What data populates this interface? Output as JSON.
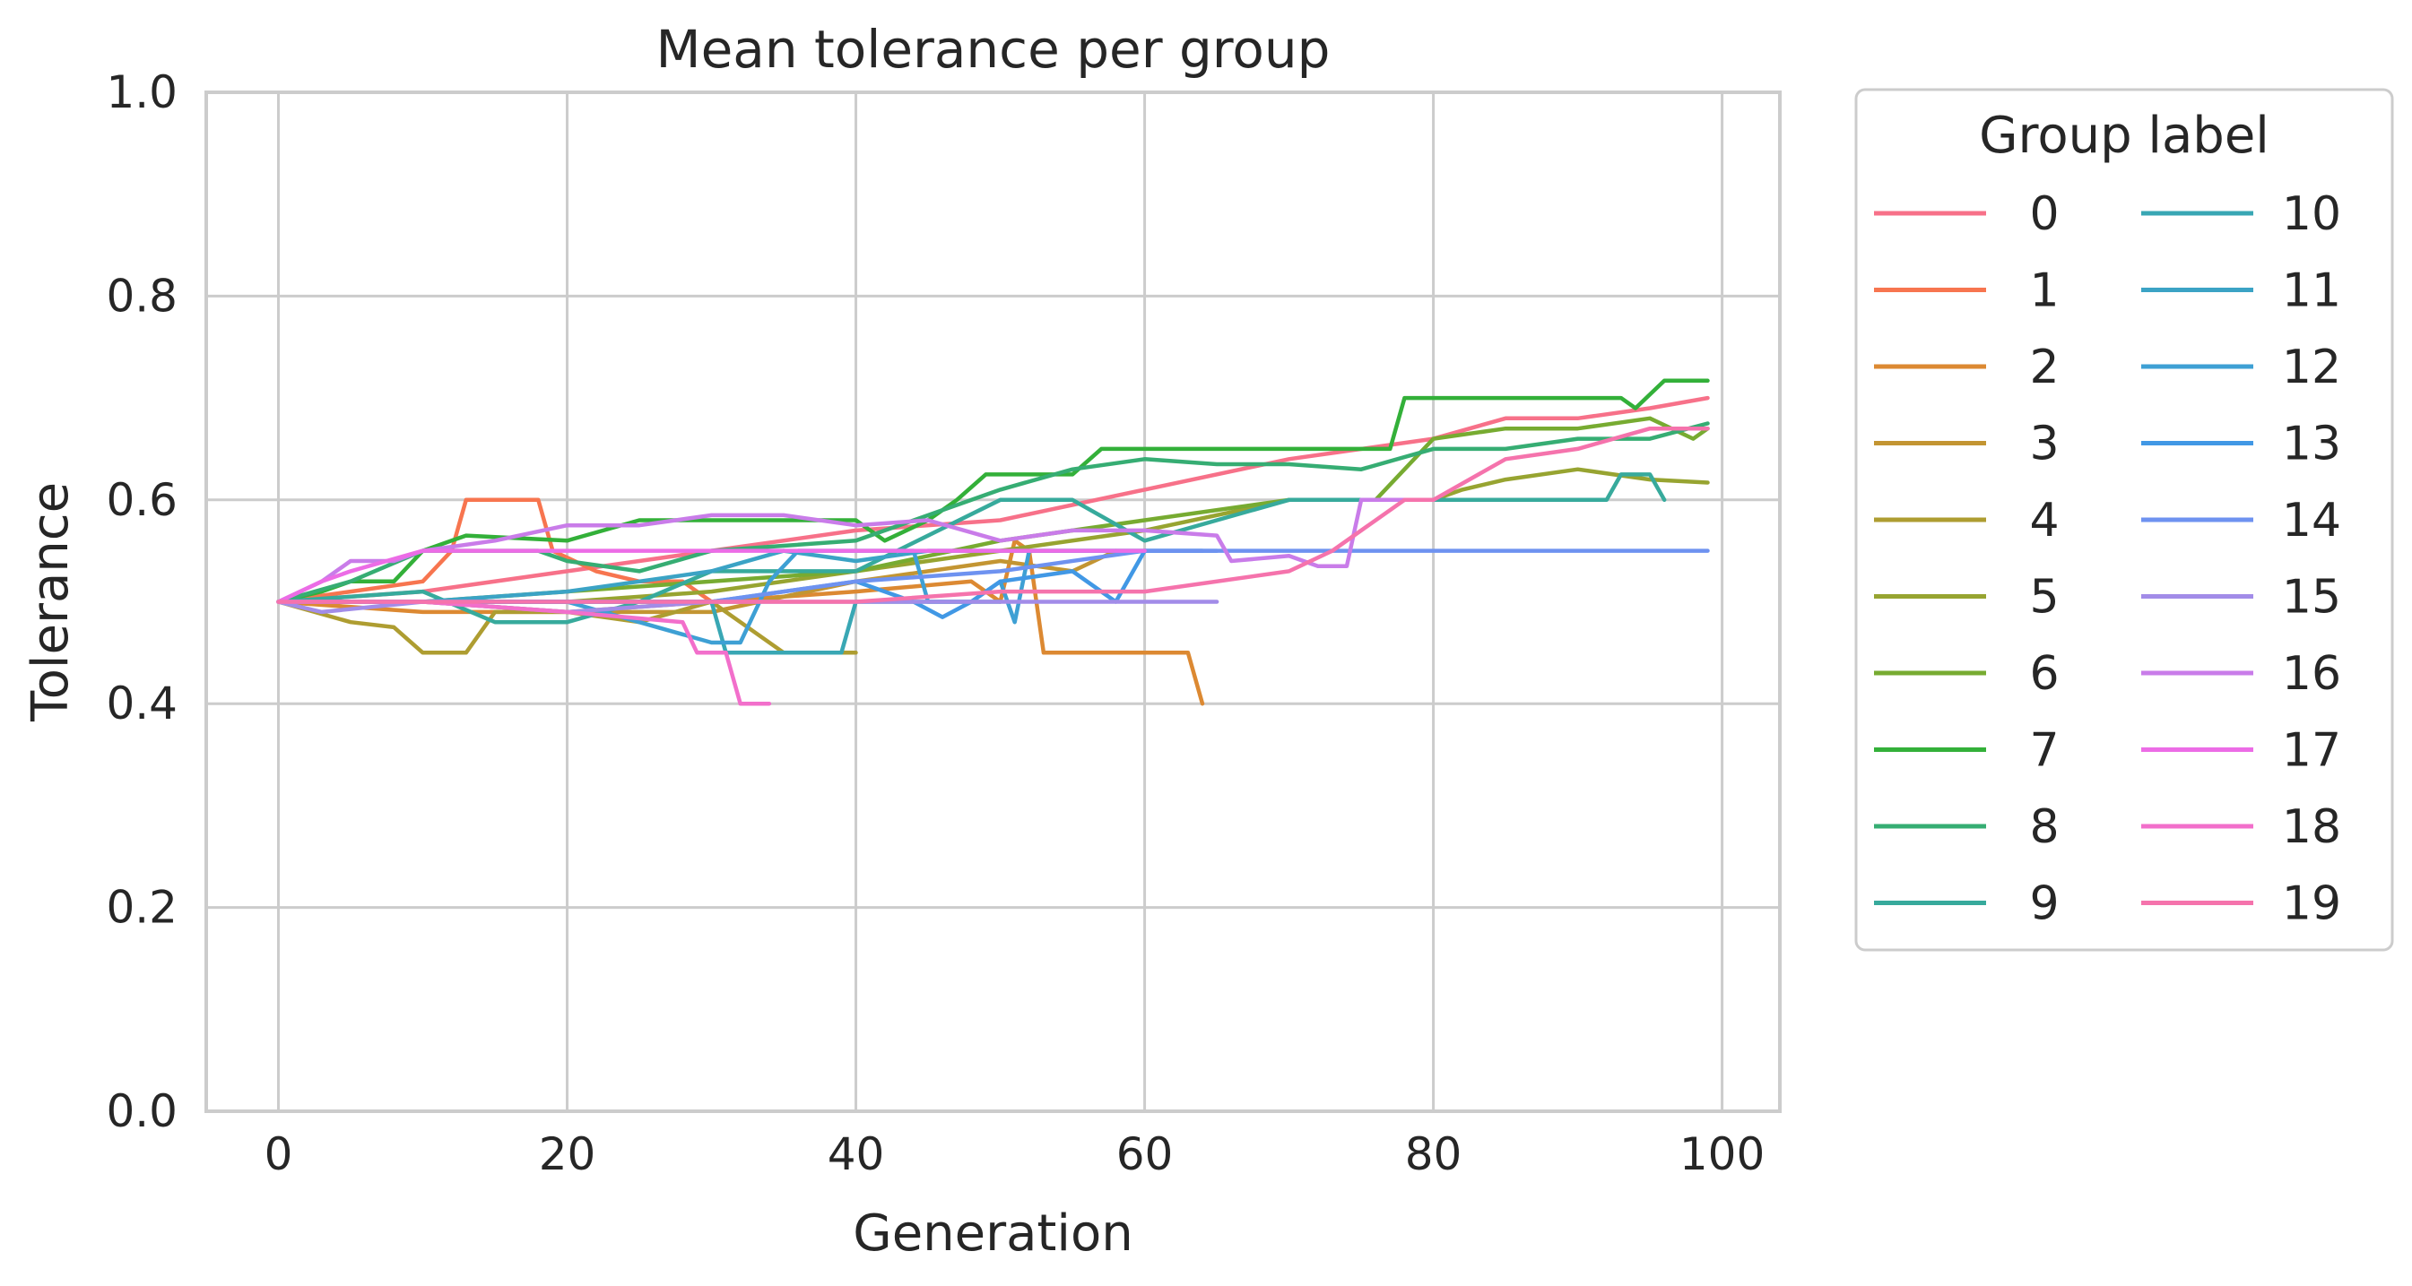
{
  "chart_data": {
    "type": "line",
    "title": "Mean tolerance per group",
    "xlabel": "Generation",
    "ylabel": "Tolerance",
    "xlim": [
      -5,
      104
    ],
    "ylim": [
      0,
      1
    ],
    "xticks": [
      0,
      20,
      40,
      60,
      80,
      100
    ],
    "yticks": [
      0.0,
      0.2,
      0.4,
      0.6,
      0.8,
      1.0
    ],
    "xtick_labels": [
      "0",
      "20",
      "40",
      "60",
      "80",
      "100"
    ],
    "ytick_labels": [
      "0.0",
      "0.2",
      "0.4",
      "0.6",
      "0.8",
      "1.0"
    ],
    "grid": true,
    "legend": {
      "title": "Group label",
      "placement": "outside-upper-right",
      "columns": 2
    },
    "series": [
      {
        "name": "0",
        "color": "#f77189",
        "points": [
          [
            0,
            0.5
          ],
          [
            10,
            0.51
          ],
          [
            20,
            0.53
          ],
          [
            30,
            0.55
          ],
          [
            40,
            0.57
          ],
          [
            50,
            0.58
          ],
          [
            60,
            0.61
          ],
          [
            70,
            0.64
          ],
          [
            80,
            0.66
          ],
          [
            85,
            0.68
          ],
          [
            90,
            0.68
          ],
          [
            95,
            0.69
          ],
          [
            99,
            0.7
          ]
        ]
      },
      {
        "name": "1",
        "color": "#f7754f",
        "points": [
          [
            0,
            0.5
          ],
          [
            5,
            0.51
          ],
          [
            10,
            0.52
          ],
          [
            12,
            0.55
          ],
          [
            13,
            0.6
          ],
          [
            18,
            0.6
          ],
          [
            19,
            0.55
          ],
          [
            22,
            0.53
          ],
          [
            25,
            0.52
          ],
          [
            28,
            0.52
          ],
          [
            30,
            0.5
          ],
          [
            33,
            0.5
          ]
        ]
      },
      {
        "name": "2",
        "color": "#dc8932",
        "points": [
          [
            0,
            0.5
          ],
          [
            10,
            0.49
          ],
          [
            20,
            0.49
          ],
          [
            30,
            0.5
          ],
          [
            40,
            0.51
          ],
          [
            48,
            0.52
          ],
          [
            50,
            0.5
          ],
          [
            51,
            0.56
          ],
          [
            52,
            0.55
          ],
          [
            53,
            0.45
          ],
          [
            63,
            0.45
          ],
          [
            64,
            0.4
          ]
        ]
      },
      {
        "name": "3",
        "color": "#c39532",
        "points": [
          [
            0,
            0.5
          ],
          [
            10,
            0.5
          ],
          [
            20,
            0.49
          ],
          [
            30,
            0.49
          ],
          [
            40,
            0.52
          ],
          [
            50,
            0.54
          ],
          [
            55,
            0.53
          ],
          [
            58,
            0.55
          ]
        ]
      },
      {
        "name": "4",
        "color": "#ae9d31",
        "points": [
          [
            0,
            0.5
          ],
          [
            5,
            0.48
          ],
          [
            8,
            0.475
          ],
          [
            10,
            0.45
          ],
          [
            13,
            0.45
          ],
          [
            15,
            0.49
          ],
          [
            20,
            0.49
          ],
          [
            25,
            0.48
          ],
          [
            30,
            0.5
          ],
          [
            32,
            0.48
          ],
          [
            35,
            0.45
          ],
          [
            40,
            0.45
          ]
        ]
      },
      {
        "name": "5",
        "color": "#97a431",
        "points": [
          [
            0,
            0.5
          ],
          [
            10,
            0.5
          ],
          [
            20,
            0.5
          ],
          [
            30,
            0.51
          ],
          [
            40,
            0.53
          ],
          [
            50,
            0.55
          ],
          [
            60,
            0.57
          ],
          [
            70,
            0.6
          ],
          [
            80,
            0.6
          ],
          [
            82,
            0.61
          ],
          [
            85,
            0.62
          ],
          [
            90,
            0.63
          ],
          [
            95,
            0.62
          ],
          [
            99,
            0.617
          ]
        ]
      },
      {
        "name": "6",
        "color": "#77ab31",
        "points": [
          [
            0,
            0.5
          ],
          [
            10,
            0.5
          ],
          [
            20,
            0.51
          ],
          [
            30,
            0.52
          ],
          [
            40,
            0.53
          ],
          [
            50,
            0.56
          ],
          [
            60,
            0.58
          ],
          [
            70,
            0.6
          ],
          [
            76,
            0.6
          ],
          [
            78,
            0.63
          ],
          [
            80,
            0.66
          ],
          [
            85,
            0.67
          ],
          [
            90,
            0.67
          ],
          [
            95,
            0.68
          ],
          [
            98,
            0.66
          ],
          [
            99,
            0.67
          ]
        ]
      },
      {
        "name": "7",
        "color": "#33b039",
        "points": [
          [
            0,
            0.5
          ],
          [
            3,
            0.51
          ],
          [
            5,
            0.52
          ],
          [
            8,
            0.52
          ],
          [
            10,
            0.55
          ],
          [
            13,
            0.565
          ],
          [
            20,
            0.56
          ],
          [
            25,
            0.58
          ],
          [
            40,
            0.58
          ],
          [
            42,
            0.56
          ],
          [
            45,
            0.58
          ],
          [
            47,
            0.6
          ],
          [
            49,
            0.625
          ],
          [
            55,
            0.625
          ],
          [
            57,
            0.65
          ],
          [
            77,
            0.65
          ],
          [
            78,
            0.7
          ],
          [
            93,
            0.7
          ],
          [
            94,
            0.69
          ],
          [
            96,
            0.717
          ],
          [
            99,
            0.717
          ]
        ]
      },
      {
        "name": "8",
        "color": "#36ad73",
        "points": [
          [
            0,
            0.5
          ],
          [
            5,
            0.52
          ],
          [
            10,
            0.55
          ],
          [
            18,
            0.55
          ],
          [
            20,
            0.54
          ],
          [
            25,
            0.53
          ],
          [
            30,
            0.55
          ],
          [
            40,
            0.56
          ],
          [
            50,
            0.61
          ],
          [
            55,
            0.63
          ],
          [
            60,
            0.64
          ],
          [
            65,
            0.635
          ],
          [
            70,
            0.635
          ],
          [
            75,
            0.63
          ],
          [
            80,
            0.65
          ],
          [
            85,
            0.65
          ],
          [
            90,
            0.66
          ],
          [
            95,
            0.66
          ],
          [
            99,
            0.675
          ]
        ]
      },
      {
        "name": "9",
        "color": "#37aa9c",
        "points": [
          [
            0,
            0.5
          ],
          [
            10,
            0.51
          ],
          [
            15,
            0.48
          ],
          [
            20,
            0.48
          ],
          [
            25,
            0.5
          ],
          [
            30,
            0.53
          ],
          [
            40,
            0.53
          ],
          [
            50,
            0.6
          ],
          [
            55,
            0.6
          ],
          [
            60,
            0.56
          ],
          [
            65,
            0.58
          ],
          [
            70,
            0.6
          ],
          [
            80,
            0.6
          ],
          [
            92,
            0.6
          ],
          [
            93,
            0.625
          ],
          [
            95,
            0.625
          ],
          [
            96,
            0.6
          ]
        ]
      },
      {
        "name": "10",
        "color": "#39a7b4",
        "points": [
          [
            0,
            0.5
          ],
          [
            10,
            0.5
          ],
          [
            20,
            0.5
          ],
          [
            30,
            0.5
          ],
          [
            31,
            0.45
          ],
          [
            39,
            0.45
          ],
          [
            40,
            0.5
          ],
          [
            50,
            0.5
          ]
        ]
      },
      {
        "name": "11",
        "color": "#3ba3c5",
        "points": [
          [
            0,
            0.5
          ],
          [
            10,
            0.5
          ],
          [
            20,
            0.51
          ],
          [
            25,
            0.52
          ],
          [
            30,
            0.53
          ],
          [
            35,
            0.55
          ],
          [
            40,
            0.54
          ],
          [
            45,
            0.55
          ],
          [
            50,
            0.55
          ],
          [
            55,
            0.55
          ],
          [
            60,
            0.55
          ]
        ]
      },
      {
        "name": "12",
        "color": "#3ea0d4",
        "points": [
          [
            0,
            0.5
          ],
          [
            10,
            0.5
          ],
          [
            20,
            0.5
          ],
          [
            30,
            0.46
          ],
          [
            32,
            0.46
          ],
          [
            34,
            0.52
          ],
          [
            36,
            0.55
          ],
          [
            40,
            0.55
          ],
          [
            44,
            0.55
          ],
          [
            45,
            0.5
          ],
          [
            48,
            0.5
          ],
          [
            50,
            0.52
          ],
          [
            51,
            0.48
          ],
          [
            52,
            0.55
          ],
          [
            63,
            0.55
          ],
          [
            64,
            0.55
          ]
        ]
      },
      {
        "name": "13",
        "color": "#4198e5",
        "points": [
          [
            0,
            0.5
          ],
          [
            10,
            0.5
          ],
          [
            20,
            0.5
          ],
          [
            30,
            0.5
          ],
          [
            40,
            0.52
          ],
          [
            44,
            0.5
          ],
          [
            46,
            0.485
          ],
          [
            48,
            0.5
          ],
          [
            50,
            0.52
          ],
          [
            55,
            0.53
          ],
          [
            58,
            0.5
          ],
          [
            60,
            0.55
          ],
          [
            65,
            0.55
          ]
        ]
      },
      {
        "name": "14",
        "color": "#6e92f0",
        "points": [
          [
            0,
            0.5
          ],
          [
            10,
            0.5
          ],
          [
            20,
            0.5
          ],
          [
            30,
            0.5
          ],
          [
            40,
            0.52
          ],
          [
            50,
            0.53
          ],
          [
            60,
            0.55
          ],
          [
            80,
            0.55
          ],
          [
            99,
            0.55
          ]
        ]
      },
      {
        "name": "15",
        "color": "#a28ce8",
        "points": [
          [
            0,
            0.5
          ],
          [
            3,
            0.49
          ],
          [
            10,
            0.5
          ],
          [
            20,
            0.49
          ],
          [
            30,
            0.5
          ],
          [
            40,
            0.5
          ],
          [
            50,
            0.5
          ],
          [
            60,
            0.5
          ],
          [
            65,
            0.5
          ]
        ]
      },
      {
        "name": "16",
        "color": "#c97ce9",
        "points": [
          [
            0,
            0.5
          ],
          [
            3,
            0.52
          ],
          [
            5,
            0.54
          ],
          [
            8,
            0.54
          ],
          [
            10,
            0.55
          ],
          [
            15,
            0.56
          ],
          [
            20,
            0.575
          ],
          [
            25,
            0.575
          ],
          [
            30,
            0.585
          ],
          [
            35,
            0.585
          ],
          [
            40,
            0.575
          ],
          [
            45,
            0.58
          ],
          [
            50,
            0.56
          ],
          [
            55,
            0.57
          ],
          [
            60,
            0.57
          ],
          [
            65,
            0.565
          ],
          [
            66,
            0.54
          ],
          [
            70,
            0.545
          ],
          [
            72,
            0.535
          ],
          [
            74,
            0.535
          ],
          [
            75,
            0.6
          ],
          [
            80,
            0.6
          ]
        ]
      },
      {
        "name": "17",
        "color": "#ec6ce6",
        "points": [
          [
            0,
            0.5
          ],
          [
            3,
            0.52
          ],
          [
            5,
            0.53
          ],
          [
            10,
            0.55
          ],
          [
            20,
            0.55
          ],
          [
            30,
            0.55
          ],
          [
            40,
            0.55
          ],
          [
            48,
            0.55
          ],
          [
            55,
            0.55
          ],
          [
            60,
            0.55
          ]
        ]
      },
      {
        "name": "18",
        "color": "#f26fcb",
        "points": [
          [
            0,
            0.5
          ],
          [
            10,
            0.5
          ],
          [
            20,
            0.49
          ],
          [
            28,
            0.48
          ],
          [
            29,
            0.45
          ],
          [
            31,
            0.45
          ],
          [
            32,
            0.4
          ],
          [
            34,
            0.4
          ]
        ]
      },
      {
        "name": "19",
        "color": "#f573ac",
        "points": [
          [
            0,
            0.5
          ],
          [
            10,
            0.5
          ],
          [
            20,
            0.5
          ],
          [
            30,
            0.5
          ],
          [
            40,
            0.5
          ],
          [
            50,
            0.51
          ],
          [
            60,
            0.51
          ],
          [
            70,
            0.53
          ],
          [
            73,
            0.55
          ],
          [
            75,
            0.57
          ],
          [
            78,
            0.6
          ],
          [
            80,
            0.6
          ],
          [
            85,
            0.64
          ],
          [
            90,
            0.65
          ],
          [
            95,
            0.67
          ],
          [
            99,
            0.67
          ]
        ]
      }
    ]
  }
}
